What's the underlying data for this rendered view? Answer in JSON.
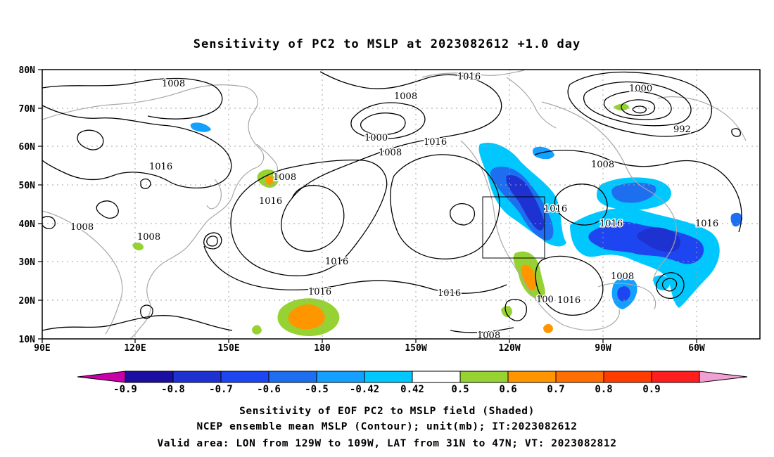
{
  "title": "Sensitivity of PC2 to MSLP at 2023082612 +1.0 day",
  "lat_ticks": [
    "80N",
    "70N",
    "60N",
    "50N",
    "40N",
    "30N",
    "20N",
    "10N"
  ],
  "lon_ticks": [
    "90E",
    "120E",
    "150E",
    "180",
    "150W",
    "120W",
    "90W",
    "60W"
  ],
  "contour_labels": [
    "1008",
    "1016",
    "1008",
    "1000",
    "1008",
    "1016",
    "1016",
    "1008",
    "1000",
    "992",
    "1008",
    "1016",
    "1008",
    "1016",
    "1008",
    "1016",
    "1016",
    "1016",
    "1016",
    "1016",
    "1008",
    "100",
    "1016",
    "1008",
    "1016"
  ],
  "colorbar": {
    "labels": [
      "-0.9",
      "-0.8",
      "-0.7",
      "-0.6",
      "-0.5",
      "-0.42",
      "0.42",
      "0.5",
      "0.6",
      "0.7",
      "0.8",
      "0.9"
    ],
    "colors": [
      "#c800a8",
      "#1a0fa0",
      "#1e32d2",
      "#1e46f0",
      "#1e6ef0",
      "#14a0ff",
      "#00c8ff",
      "#ffffff",
      "#96d232",
      "#ff9600",
      "#ff6e00",
      "#ff3c00",
      "#ff1e1e",
      "#f0a0d2"
    ]
  },
  "caption": [
    "Sensitivity of EOF PC2 to MSLP field (Shaded)",
    "NCEP ensemble mean MSLP (Contour); unit(mb); IT:2023082612",
    "Valid area: LON from 129W to 109W, LAT from 31N to 47N; VT: 2023082812"
  ]
}
